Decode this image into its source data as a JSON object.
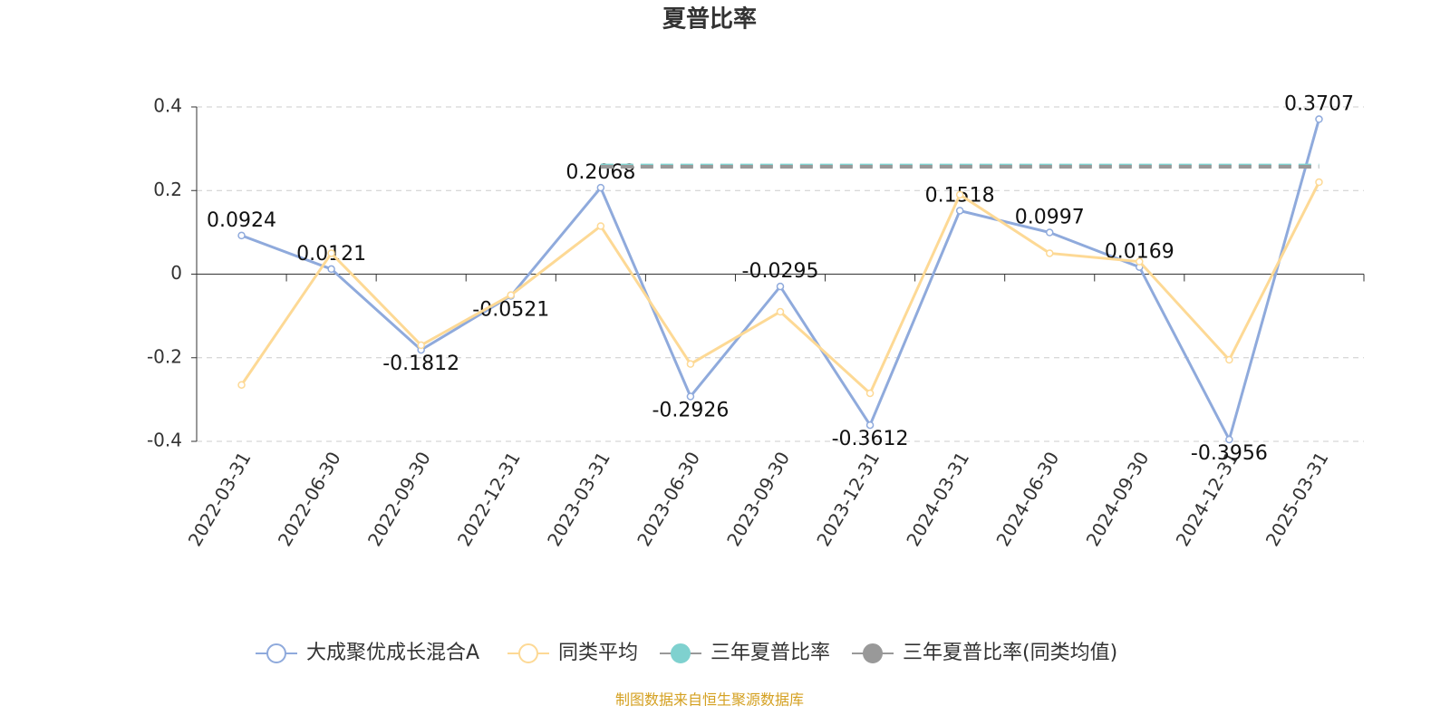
{
  "chart_data": {
    "type": "line",
    "title": "夏普比率",
    "categories": [
      "2022-03-31",
      "2022-06-30",
      "2022-09-30",
      "2022-12-31",
      "2023-03-31",
      "2023-06-30",
      "2023-09-30",
      "2023-12-31",
      "2024-03-31",
      "2024-06-30",
      "2024-09-30",
      "2024-12-31",
      "2025-03-31"
    ],
    "series": [
      {
        "name": "大成聚优成长混合A",
        "color": "#8faadc",
        "values": [
          0.0924,
          0.0121,
          -0.1812,
          -0.0521,
          0.2068,
          -0.2926,
          -0.0295,
          -0.3612,
          0.1518,
          0.0997,
          0.0169,
          -0.3956,
          0.3707
        ],
        "data_labels": true
      },
      {
        "name": "同类平均",
        "color": "#fdd995",
        "values": [
          -0.265,
          0.05,
          -0.17,
          -0.05,
          0.115,
          -0.215,
          -0.09,
          -0.285,
          0.19,
          0.05,
          0.03,
          -0.205,
          0.22
        ]
      },
      {
        "name": "三年夏普比率",
        "color": "#7fd1cf",
        "dashed": true,
        "values": [
          null,
          null,
          null,
          null,
          0.26,
          0.26,
          0.26,
          0.26,
          0.26,
          0.26,
          0.26,
          0.26,
          0.26
        ]
      },
      {
        "name": "三年夏普比率(同类均值)",
        "color": "#999999",
        "dashed": true,
        "values": [
          null,
          null,
          null,
          null,
          0.257,
          0.257,
          0.257,
          0.257,
          0.257,
          0.257,
          0.257,
          0.257,
          0.257
        ]
      }
    ],
    "ylim": [
      -0.4,
      0.4
    ],
    "yticks": [
      -0.4,
      -0.2,
      0,
      0.2,
      0.4
    ],
    "grid": true,
    "legend": "bottom",
    "source": "制图数据来自恒生聚源数据库"
  }
}
